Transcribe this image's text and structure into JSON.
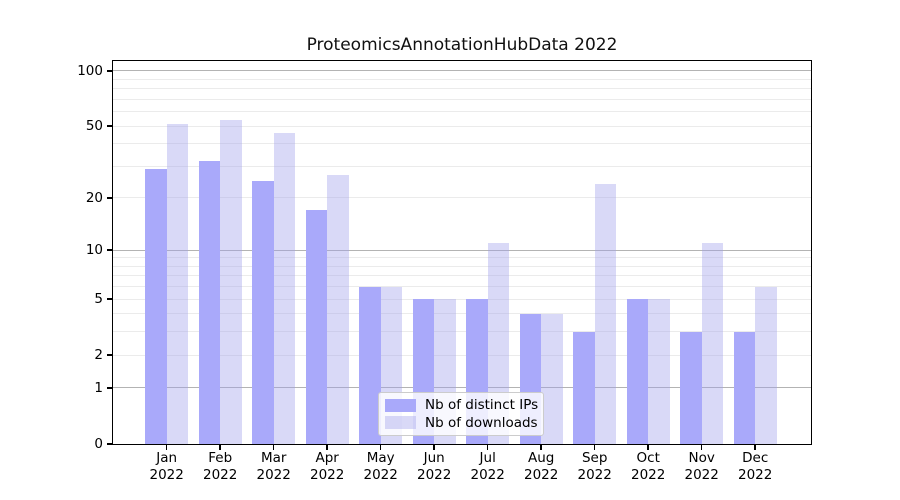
{
  "header": {
    "title": "ProteomicsAnnotationHubData 2022"
  },
  "legend": {
    "items": [
      {
        "label": "Nb of distinct IPs"
      },
      {
        "label": "Nb of downloads"
      }
    ]
  },
  "chart_data": {
    "type": "bar",
    "title": "ProteomicsAnnotationHubData 2022",
    "categories": [
      "Jan",
      "Feb",
      "Mar",
      "Apr",
      "May",
      "Jun",
      "Jul",
      "Aug",
      "Sep",
      "Oct",
      "Nov",
      "Dec"
    ],
    "year_label": "2022",
    "series": [
      {
        "name": "Nb of distinct IPs",
        "color": "#a9a9fa",
        "fill_alpha": 1.0,
        "values": [
          29,
          32,
          25,
          17,
          6,
          5,
          5,
          4,
          3,
          5,
          3,
          3
        ]
      },
      {
        "name": "Nb of downloads",
        "color": "#a0a0ea",
        "fill_alpha": 0.4,
        "values": [
          51,
          54,
          46,
          27,
          6,
          5,
          11,
          4,
          24,
          5,
          11,
          6
        ]
      }
    ],
    "yscale": "log1p",
    "ylim": [
      0,
      113
    ],
    "yticks": [
      100,
      50,
      20,
      10,
      5,
      2,
      1,
      0
    ],
    "grid": {
      "on": true,
      "minor_values": [
        2,
        3,
        4,
        5,
        6,
        7,
        8,
        9,
        20,
        30,
        40,
        50,
        60,
        70,
        80,
        90
      ],
      "major_values": [
        1,
        10,
        100
      ],
      "minor_color": "#ebebeb",
      "major_color": "#b3b3b3"
    },
    "legend_position": "lower center inside",
    "xlabel": "",
    "ylabel": ""
  }
}
